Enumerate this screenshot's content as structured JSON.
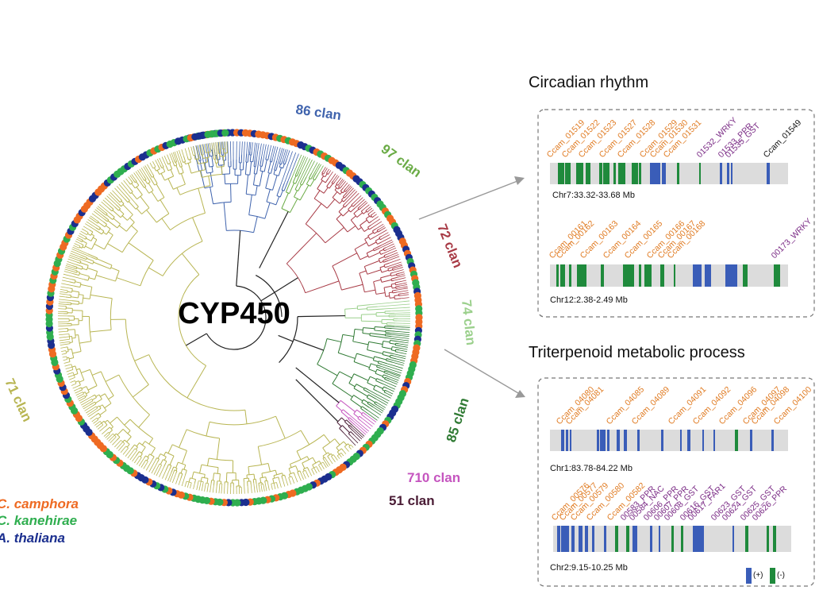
{
  "tree": {
    "title": "CYP450",
    "clans": [
      {
        "label": "86 clan",
        "color": "#3f63ad"
      },
      {
        "label": "97 clan",
        "color": "#6aab45"
      },
      {
        "label": "72 clan",
        "color": "#a83a45"
      },
      {
        "label": "74 clan",
        "color": "#9bd08c"
      },
      {
        "label": "85 clan",
        "color": "#2f7a33"
      },
      {
        "label": "710 clan",
        "color": "#c555bf"
      },
      {
        "label": "51 clan",
        "color": "#4a1c35"
      },
      {
        "label": "71 clan",
        "color": "#b8b552"
      }
    ],
    "species": [
      {
        "label": "C. camphora",
        "color": "#ee6a22"
      },
      {
        "label": "C. kanehirae",
        "color": "#2fae4f"
      },
      {
        "label": "A. thaliana",
        "color": "#1b2f8f"
      }
    ]
  },
  "panels": [
    {
      "title": "Circadian rhythm",
      "tracks": [
        {
          "chr": "Chr7:33.32-33.68 Mb",
          "labels": [
            {
              "text": "Ccam_01519",
              "color": "#e07b22"
            },
            {
              "text": "Ccam_01522",
              "color": "#e07b22"
            },
            {
              "text": "Ccam_01523",
              "color": "#e07b22"
            },
            {
              "text": "Ccam_01527",
              "color": "#e07b22"
            },
            {
              "text": "Ccam_01528",
              "color": "#e07b22"
            },
            {
              "text": "Ccam_01529",
              "color": "#e07b22"
            },
            {
              "text": "Ccam_01530",
              "color": "#e07b22"
            },
            {
              "text": "Ccam_01531",
              "color": "#e07b22"
            },
            {
              "text": "01532_WRKY",
              "color": "#7a2a85"
            },
            {
              "text": "01533_PPR",
              "color": "#7a2a85"
            },
            {
              "text": "01535_GST",
              "color": "#7a2a85"
            },
            {
              "text": "Ccam_01549",
              "color": "#111111"
            }
          ]
        },
        {
          "chr": "Chr12:2.38-2.49 Mb",
          "labels": [
            {
              "text": "Ccam_00161",
              "color": "#e07b22"
            },
            {
              "text": "Ccam_00162",
              "color": "#e07b22"
            },
            {
              "text": "Ccam_00163",
              "color": "#e07b22"
            },
            {
              "text": "Ccam_00164",
              "color": "#e07b22"
            },
            {
              "text": "Ccam_00165",
              "color": "#e07b22"
            },
            {
              "text": "Ccam_00166",
              "color": "#e07b22"
            },
            {
              "text": "Ccam_00167",
              "color": "#e07b22"
            },
            {
              "text": "Ccam_00168",
              "color": "#e07b22"
            },
            {
              "text": "00173_WRKY",
              "color": "#7a2a85"
            }
          ]
        }
      ]
    },
    {
      "title": "Triterpenoid metabolic process",
      "tracks": [
        {
          "chr": "Chr1:83.78-84.22 Mb",
          "labels": [
            {
              "text": "Ccam_04080",
              "color": "#e07b22"
            },
            {
              "text": "Ccam_04081",
              "color": "#e07b22"
            },
            {
              "text": "Ccam_04085",
              "color": "#e07b22"
            },
            {
              "text": "Ccam_04089",
              "color": "#e07b22"
            },
            {
              "text": "Ccam_04091",
              "color": "#e07b22"
            },
            {
              "text": "Ccam_04092",
              "color": "#e07b22"
            },
            {
              "text": "Ccam_04096",
              "color": "#e07b22"
            },
            {
              "text": "Ccam_04097",
              "color": "#e07b22"
            },
            {
              "text": "Ccam_04098",
              "color": "#e07b22"
            },
            {
              "text": "Ccam_04100",
              "color": "#e07b22"
            }
          ]
        },
        {
          "chr": "Chr2:9.15-10.25 Mb",
          "labels": [
            {
              "text": "Ccam_00576",
              "color": "#e07b22"
            },
            {
              "text": "Ccam_00577",
              "color": "#e07b22"
            },
            {
              "text": "Ccam_00579",
              "color": "#e07b22"
            },
            {
              "text": "Ccam_00580",
              "color": "#e07b22"
            },
            {
              "text": "Ccam_00582",
              "color": "#e07b22"
            },
            {
              "text": "00583_PPR",
              "color": "#7a2a85"
            },
            {
              "text": "00584_NAC",
              "color": "#7a2a85"
            },
            {
              "text": "00606_PPR",
              "color": "#7a2a85"
            },
            {
              "text": "00607_PPR",
              "color": "#7a2a85"
            },
            {
              "text": "00608_GST",
              "color": "#7a2a85"
            },
            {
              "text": "00616_GST",
              "color": "#7a2a85"
            },
            {
              "text": "00617_FAR1",
              "color": "#7a2a85"
            },
            {
              "text": "00623_GST",
              "color": "#7a2a85"
            },
            {
              "text": "00624_GST",
              "color": "#7a2a85"
            },
            {
              "text": "00625_GST",
              "color": "#7a2a85"
            },
            {
              "text": "00626_PPR",
              "color": "#7a2a85"
            }
          ]
        }
      ]
    }
  ],
  "strand_key": [
    {
      "label": "(+)",
      "color": "#3a5db8"
    },
    {
      "label": "(-)",
      "color": "#1f8a3c"
    }
  ]
}
